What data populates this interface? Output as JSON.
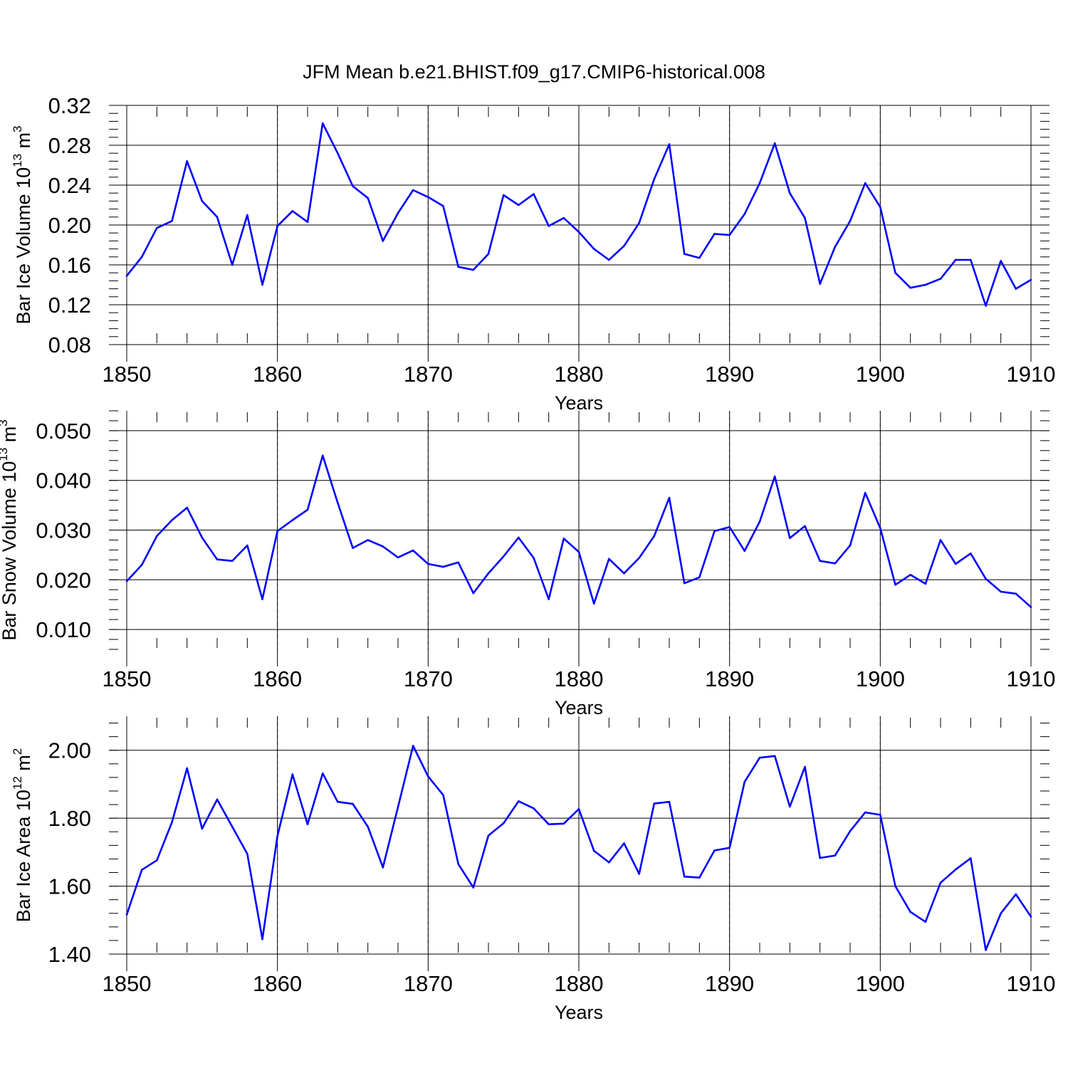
{
  "chart_data": {
    "title": "JFM Mean b.e21.BHIST.f09_g17.CMIP6-historical.008",
    "series_color": "#0000ff",
    "x_ticks": [
      1850,
      1860,
      1870,
      1880,
      1890,
      1900,
      1910
    ],
    "x": [
      1850,
      1851,
      1852,
      1853,
      1854,
      1855,
      1856,
      1857,
      1858,
      1859,
      1860,
      1861,
      1862,
      1863,
      1864,
      1865,
      1866,
      1867,
      1868,
      1869,
      1870,
      1871,
      1872,
      1873,
      1874,
      1875,
      1876,
      1877,
      1878,
      1879,
      1880,
      1881,
      1882,
      1883,
      1884,
      1885,
      1886,
      1887,
      1888,
      1889,
      1890,
      1891,
      1892,
      1893,
      1894,
      1895,
      1896,
      1897,
      1898,
      1899,
      1900,
      1901,
      1902,
      1903,
      1904,
      1905,
      1906,
      1907,
      1908,
      1909,
      1910
    ],
    "panels": [
      {
        "type": "line",
        "ylabel_main": "Bar Ice Volume 10",
        "ylabel_exp": "13",
        "ylabel_unit": " m",
        "ylabel_unit_exp": "3",
        "xlabel": "Years",
        "ylim": [
          0.08,
          0.32
        ],
        "y_ticks": [
          0.08,
          0.12,
          0.16,
          0.2,
          0.24,
          0.28,
          0.32
        ],
        "y_tick_labels": [
          "0.08",
          "0.12",
          "0.16",
          "0.20",
          "0.24",
          "0.28",
          "0.32"
        ],
        "values": [
          0.149,
          0.168,
          0.197,
          0.204,
          0.264,
          0.224,
          0.208,
          0.16,
          0.21,
          0.14,
          0.199,
          0.214,
          0.203,
          0.302,
          0.272,
          0.239,
          0.227,
          0.184,
          0.212,
          0.235,
          0.228,
          0.219,
          0.158,
          0.155,
          0.171,
          0.23,
          0.22,
          0.231,
          0.199,
          0.207,
          0.193,
          0.176,
          0.165,
          0.179,
          0.202,
          0.246,
          0.281,
          0.171,
          0.167,
          0.191,
          0.19,
          0.211,
          0.242,
          0.282,
          0.232,
          0.207,
          0.141,
          0.178,
          0.204,
          0.242,
          0.218,
          0.152,
          0.137,
          0.14,
          0.146,
          0.165,
          0.165,
          0.119,
          0.164,
          0.136,
          0.145
        ]
      },
      {
        "type": "line",
        "ylabel_main": "Bar Snow Volume 10",
        "ylabel_exp": "13",
        "ylabel_unit": " m",
        "ylabel_unit_exp": "3",
        "xlabel": "Years",
        "ylim": [
          0.006,
          0.054
        ],
        "y_ticks": [
          0.01,
          0.02,
          0.03,
          0.04,
          0.05
        ],
        "y_tick_labels": [
          "0.010",
          "0.020",
          "0.030",
          "0.040",
          "0.050"
        ],
        "values": [
          0.0197,
          0.023,
          0.0288,
          0.032,
          0.0345,
          0.0285,
          0.0241,
          0.0238,
          0.0269,
          0.0161,
          0.0298,
          0.032,
          0.0341,
          0.045,
          0.0355,
          0.0264,
          0.028,
          0.0267,
          0.0245,
          0.0259,
          0.0232,
          0.0226,
          0.0235,
          0.0173,
          0.0213,
          0.0247,
          0.0285,
          0.0244,
          0.0161,
          0.0283,
          0.0256,
          0.0152,
          0.0242,
          0.0213,
          0.0244,
          0.0288,
          0.0365,
          0.0193,
          0.0205,
          0.0298,
          0.0306,
          0.0258,
          0.0317,
          0.0408,
          0.0284,
          0.0308,
          0.0238,
          0.0233,
          0.0269,
          0.0375,
          0.0304,
          0.019,
          0.021,
          0.0192,
          0.028,
          0.0232,
          0.0253,
          0.0202,
          0.0176,
          0.0172,
          0.0145
        ]
      },
      {
        "type": "line",
        "ylabel_main": "Bar Ice Area 10",
        "ylabel_exp": "12",
        "ylabel_unit": " m",
        "ylabel_unit_exp": "2",
        "xlabel": "Years",
        "ylim": [
          1.4,
          2.1
        ],
        "y_ticks": [
          1.4,
          1.6,
          1.8,
          2.0
        ],
        "y_tick_labels": [
          "1.40",
          "1.60",
          "1.80",
          "2.00"
        ],
        "values": [
          1.516,
          1.648,
          1.676,
          1.788,
          1.947,
          1.769,
          1.855,
          1.775,
          1.695,
          1.444,
          1.748,
          1.929,
          1.782,
          1.932,
          1.848,
          1.842,
          1.775,
          1.655,
          1.833,
          2.013,
          1.923,
          1.868,
          1.665,
          1.596,
          1.749,
          1.785,
          1.85,
          1.829,
          1.782,
          1.784,
          1.827,
          1.704,
          1.67,
          1.726,
          1.636,
          1.843,
          1.848,
          1.628,
          1.625,
          1.705,
          1.713,
          1.907,
          1.978,
          1.983,
          1.834,
          1.951,
          1.683,
          1.69,
          1.762,
          1.817,
          1.81,
          1.6,
          1.524,
          1.495,
          1.61,
          1.649,
          1.682,
          1.412,
          1.52,
          1.576,
          1.51
        ]
      }
    ]
  }
}
